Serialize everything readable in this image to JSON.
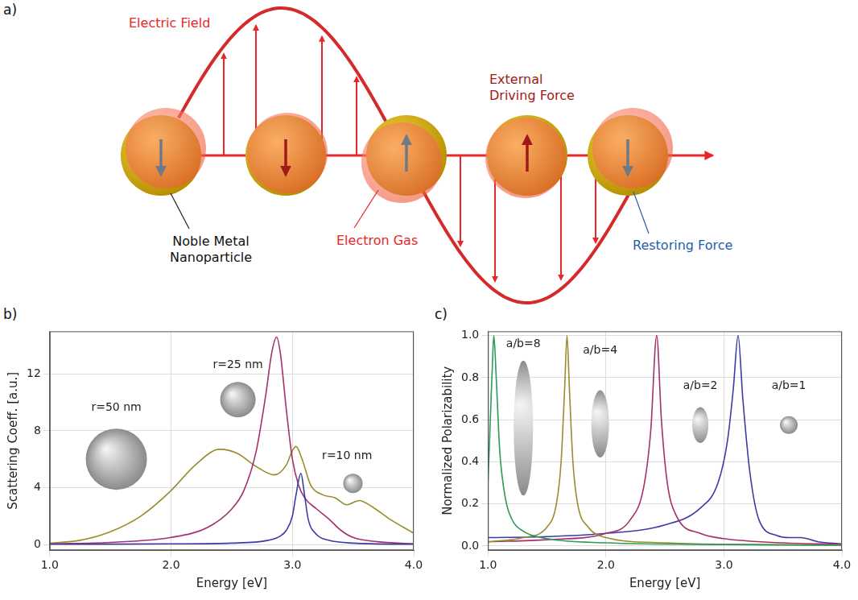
{
  "diagram": {
    "panel_label": "a)",
    "labels": {
      "electric_field": [
        "Electric Field"
      ],
      "external_driving_force": [
        "External",
        "Driving Force"
      ],
      "noble_metal_nanoparticle": [
        "Noble Metal",
        "Nanoparticle"
      ],
      "electron_gas": [
        "Electron Gas"
      ],
      "restoring_force": [
        "Restoring Force"
      ]
    }
  },
  "chart_data": [
    {
      "type": "line",
      "panel_label": "b)",
      "x_label": "Energy [eV]",
      "y_label": "Scattering Coeff. [a.u.]",
      "xlim": [
        1,
        4
      ],
      "xticks": [
        {
          "value": 1,
          "label": "1.0"
        },
        {
          "value": 2,
          "label": "2.0"
        },
        {
          "value": 3,
          "label": "3.0"
        },
        {
          "value": 4,
          "label": "4.0"
        }
      ],
      "ylim": [
        -0.4,
        15
      ],
      "yticks": [
        0,
        4,
        8,
        12
      ],
      "grid": true,
      "series": [
        {
          "name": "r=10 nm",
          "color": "#3b3ba6",
          "x": [
            1.0,
            1.5,
            2.0,
            2.5,
            2.8,
            2.9,
            2.95,
            3.0,
            3.03,
            3.07,
            3.1,
            3.13,
            3.2,
            3.3,
            3.5,
            4.0
          ],
          "values": [
            0.02,
            0.03,
            0.05,
            0.1,
            0.3,
            0.6,
            1.0,
            2.0,
            3.5,
            5.0,
            3.5,
            1.8,
            0.7,
            0.3,
            0.1,
            0.02
          ]
        },
        {
          "name": "r=25 nm",
          "color": "#a3306c",
          "x": [
            1.0,
            1.5,
            2.0,
            2.3,
            2.5,
            2.6,
            2.7,
            2.78,
            2.83,
            2.87,
            2.9,
            2.95,
            3.0,
            3.05,
            3.1,
            3.2,
            3.3,
            3.4,
            3.5,
            3.7,
            4.0
          ],
          "values": [
            0.05,
            0.15,
            0.5,
            1.2,
            2.5,
            3.8,
            6.5,
            10.5,
            13.5,
            14.6,
            13.5,
            9.5,
            6.0,
            4.2,
            3.3,
            2.5,
            1.8,
            1.0,
            0.5,
            0.2,
            0.05
          ]
        },
        {
          "name": "r=50 nm",
          "color": "#9a8c2a",
          "x": [
            1.0,
            1.25,
            1.5,
            1.75,
            2.0,
            2.2,
            2.4,
            2.55,
            2.7,
            2.85,
            2.95,
            3.0,
            3.03,
            3.08,
            3.15,
            3.25,
            3.35,
            3.45,
            3.55,
            3.65,
            3.8,
            4.0
          ],
          "values": [
            0.1,
            0.3,
            0.9,
            2.0,
            3.8,
            5.6,
            6.7,
            6.4,
            5.5,
            4.9,
            5.6,
            6.6,
            6.9,
            6.0,
            4.2,
            3.5,
            3.3,
            2.8,
            3.1,
            2.7,
            1.8,
            0.8
          ]
        }
      ]
    },
    {
      "type": "line",
      "panel_label": "c)",
      "x_label": "Energy [eV]",
      "y_label": "Normalized Polarizability",
      "xlim": [
        1,
        4
      ],
      "xticks": [
        {
          "value": 1,
          "label": "1.0"
        },
        {
          "value": 2,
          "label": "2.0"
        },
        {
          "value": 3,
          "label": "3.0"
        },
        {
          "value": 4,
          "label": "4.0"
        }
      ],
      "ylim": [
        -0.02,
        1.02
      ],
      "yticks": [
        {
          "value": 0,
          "label": "0.0"
        },
        0.2,
        0.4,
        0.6,
        0.8,
        {
          "value": 1,
          "label": "1.0"
        }
      ],
      "grid": true,
      "series": [
        {
          "name": "a/b=8",
          "color": "#2e9a5a",
          "x": [
            1.0,
            1.02,
            1.04,
            1.05,
            1.07,
            1.1,
            1.15,
            1.2,
            1.3,
            1.5,
            2.0,
            3.0,
            4.0
          ],
          "values": [
            0.3,
            0.6,
            0.9,
            1.0,
            0.8,
            0.45,
            0.22,
            0.13,
            0.07,
            0.035,
            0.015,
            0.007,
            0.004
          ]
        },
        {
          "name": "a/b=4",
          "color": "#9a8c2a",
          "x": [
            1.0,
            1.3,
            1.5,
            1.58,
            1.62,
            1.65,
            1.67,
            1.69,
            1.72,
            1.76,
            1.85,
            2.0,
            2.5,
            3.0,
            4.0
          ],
          "values": [
            0.02,
            0.04,
            0.09,
            0.2,
            0.4,
            0.75,
            1.0,
            0.75,
            0.4,
            0.2,
            0.09,
            0.04,
            0.015,
            0.008,
            0.004
          ]
        },
        {
          "name": "a/b=2",
          "color": "#a3306c",
          "x": [
            1.0,
            1.5,
            2.0,
            2.2,
            2.32,
            2.38,
            2.43,
            2.47,
            2.52,
            2.6,
            2.8,
            3.0,
            3.5,
            4.0
          ],
          "values": [
            0.02,
            0.03,
            0.06,
            0.12,
            0.28,
            0.55,
            1.0,
            0.6,
            0.3,
            0.14,
            0.06,
            0.035,
            0.015,
            0.008
          ]
        },
        {
          "name": "a/b=1",
          "color": "#3b3ba6",
          "x": [
            1.0,
            1.5,
            2.0,
            2.5,
            2.8,
            2.95,
            3.03,
            3.08,
            3.12,
            3.16,
            3.22,
            3.3,
            3.45,
            3.55,
            3.65,
            3.8,
            4.0
          ],
          "values": [
            0.04,
            0.045,
            0.06,
            0.1,
            0.18,
            0.3,
            0.5,
            0.75,
            1.0,
            0.7,
            0.35,
            0.12,
            0.05,
            0.04,
            0.04,
            0.02,
            0.01
          ]
        }
      ]
    }
  ]
}
